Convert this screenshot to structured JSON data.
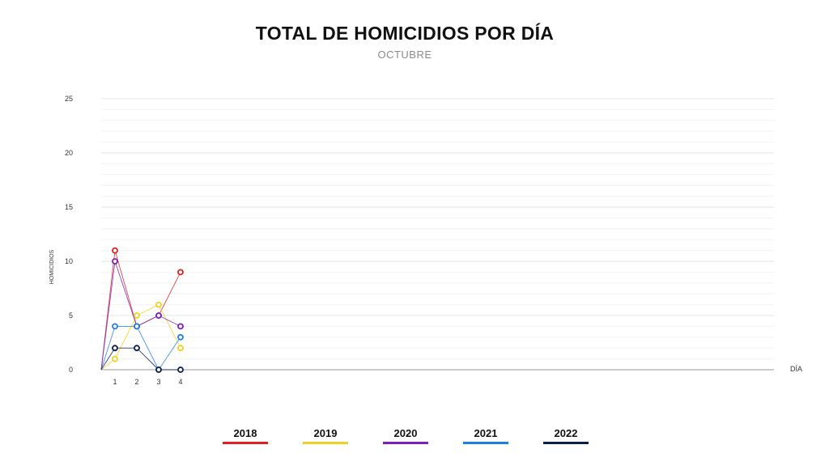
{
  "chart_data": {
    "type": "line",
    "title": "TOTAL DE HOMICIDIOS POR DÍA",
    "subtitle": "OCTUBRE",
    "xlabel": "DÍA",
    "ylabel": "HOMICIDIOS",
    "ylim": [
      0,
      25
    ],
    "yticks": [
      "0",
      "5",
      "10",
      "15",
      "20",
      "25"
    ],
    "x": [
      0,
      1,
      2,
      3,
      4
    ],
    "xticks": [
      "1",
      "2",
      "3",
      "4"
    ],
    "grid": true,
    "legend_position": "bottom",
    "series": [
      {
        "name": "2018",
        "color": "#e02020",
        "values": [
          0,
          11,
          4,
          5,
          9
        ]
      },
      {
        "name": "2019",
        "color": "#f0d020",
        "values": [
          0,
          1,
          5,
          6,
          2
        ]
      },
      {
        "name": "2020",
        "color": "#7a20c0",
        "values": [
          0,
          10,
          4,
          5,
          4
        ]
      },
      {
        "name": "2021",
        "color": "#2080e0",
        "values": [
          0,
          4,
          4,
          0,
          3
        ]
      },
      {
        "name": "2022",
        "color": "#0a1f4d",
        "values": [
          0,
          2,
          2,
          0,
          0
        ]
      }
    ]
  }
}
